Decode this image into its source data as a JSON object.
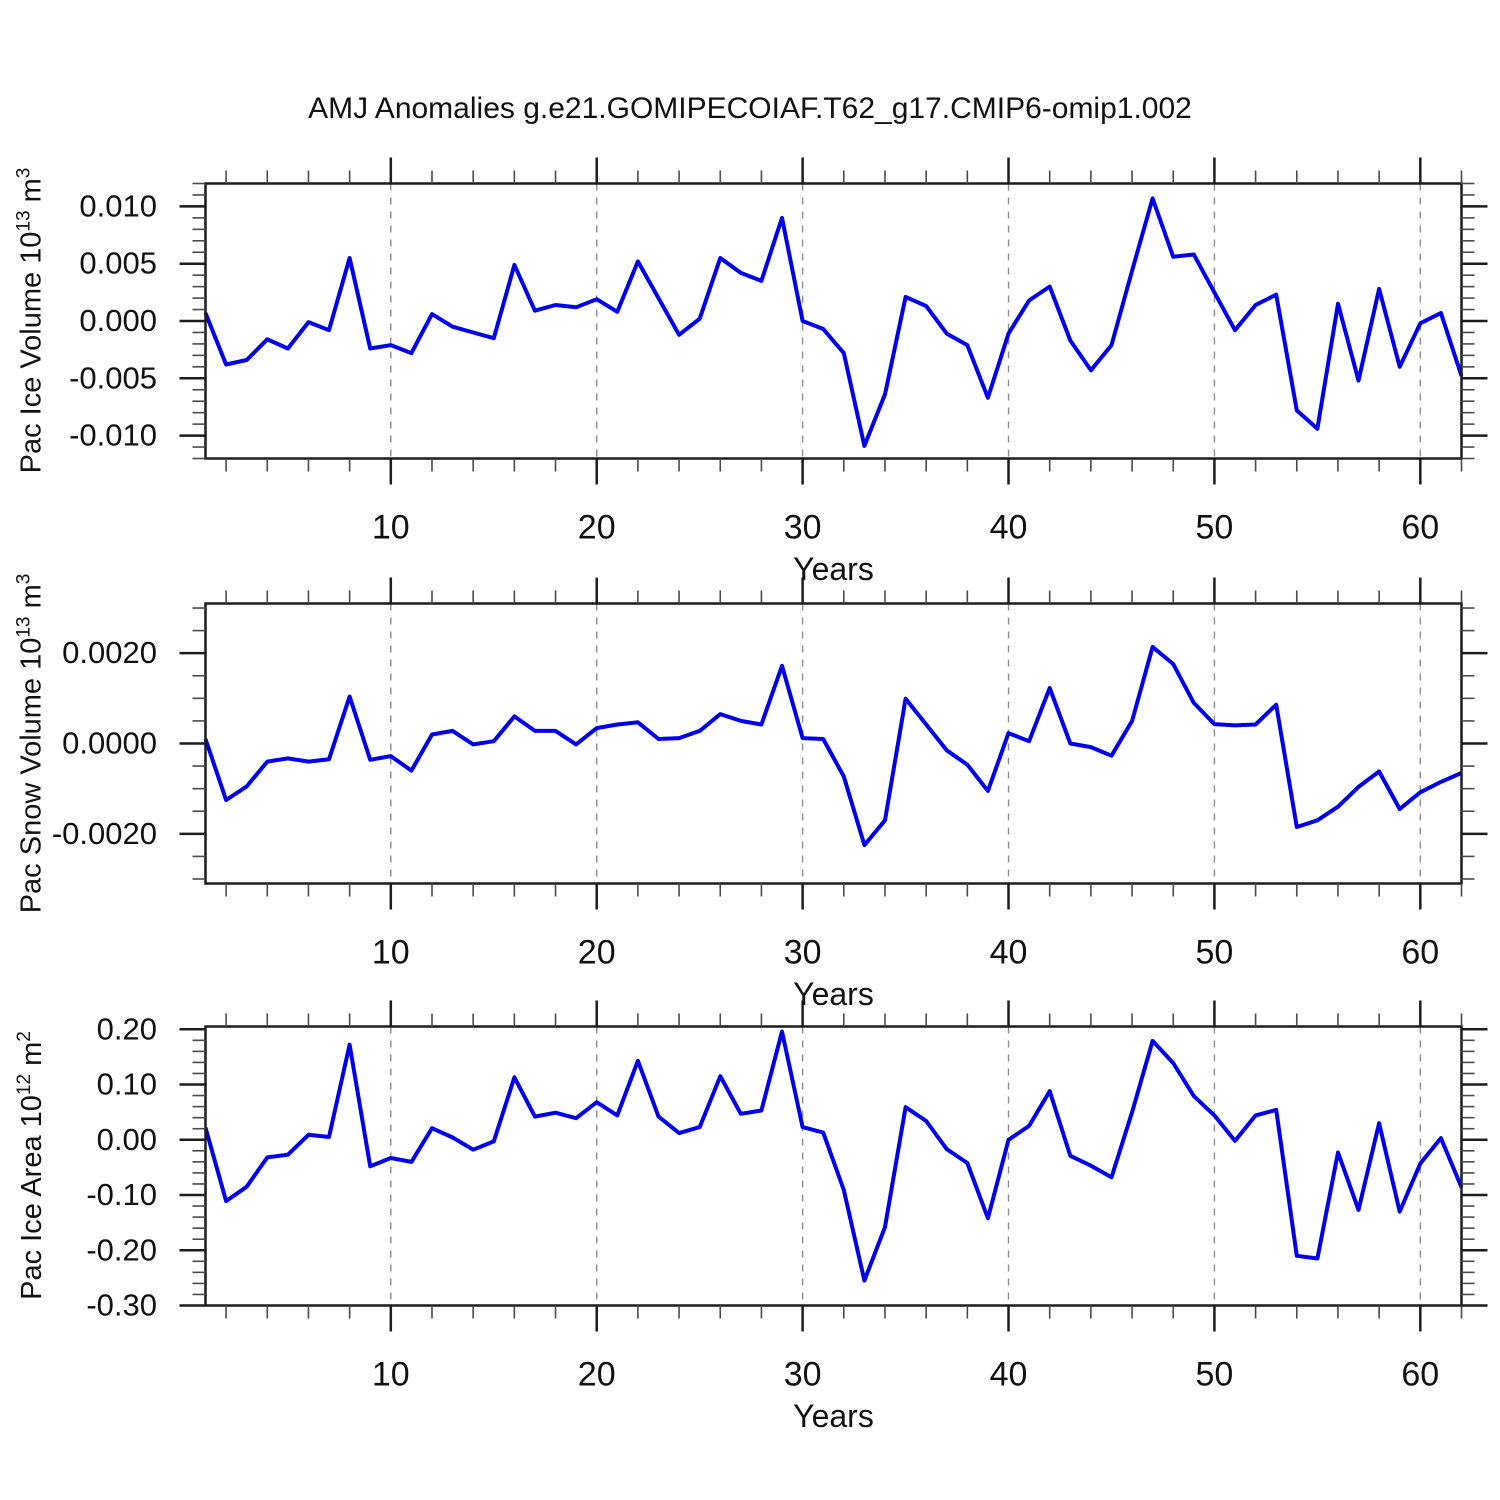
{
  "title": "AMJ Anomalies g.e21.GOMIPECOIAF.T62_g17.CMIP6-omip1.002",
  "colors": {
    "line": "#0000ee",
    "grid": "#8c8c8c",
    "axis": "#1c1c1c",
    "minor_tick": "#4a4a4a",
    "background": "#ffffff"
  },
  "chart_data": [
    {
      "id": "pac-ice-volume",
      "type": "line",
      "xlabel": "Years",
      "ylabel_text": "Pac Ice Volume 10^13 m^3",
      "ylabel_parts": [
        {
          "text": "Pac Ice Volume 10"
        },
        {
          "sup": "13"
        },
        {
          "text": " m"
        },
        {
          "sup": "3"
        }
      ],
      "xlim": [
        1,
        62
      ],
      "ylim": [
        -0.012,
        0.012
      ],
      "x_start": 1,
      "x_step": 1,
      "xticks_major": [
        10,
        20,
        30,
        40,
        50,
        60
      ],
      "xtick_labels": [
        "10",
        "20",
        "30",
        "40",
        "50",
        "60"
      ],
      "xtick_minor_step": 2,
      "grid_x": [
        10,
        20,
        30,
        40,
        50,
        60
      ],
      "yticks_major": [
        0.01,
        0.005,
        0.0,
        -0.005,
        -0.01
      ],
      "ytick_labels": [
        "0.010",
        "0.005",
        "0.000",
        "-0.005",
        "-0.010"
      ],
      "ytick_minor_step": 0.001,
      "values": [
        0.0007,
        -0.0038,
        -0.0034,
        -0.0016,
        -0.0024,
        -0.0001,
        -0.0008,
        0.0055,
        -0.0024,
        -0.0021,
        -0.0028,
        0.0006,
        -0.0005,
        -0.001,
        -0.0015,
        0.0049,
        0.0009,
        0.0014,
        0.0012,
        0.0019,
        0.0008,
        0.0052,
        0.002,
        -0.0012,
        0.0002,
        0.0055,
        0.0042,
        0.0035,
        0.009,
        0.0,
        -0.0007,
        -0.0028,
        -0.0109,
        -0.0064,
        0.0021,
        0.0013,
        -0.0011,
        -0.0021,
        -0.0067,
        -0.0011,
        0.0018,
        0.003,
        -0.0017,
        -0.0043,
        -0.0021,
        0.0044,
        0.0107,
        0.0056,
        0.0058,
        0.0025,
        -0.0008,
        0.0014,
        0.0023,
        -0.0078,
        -0.0094,
        0.0015,
        -0.0052,
        0.0028,
        -0.004,
        -0.0002,
        0.0007,
        -0.0048
      ]
    },
    {
      "id": "pac-snow-volume",
      "type": "line",
      "xlabel": "Years",
      "ylabel_text": "Pac Snow Volume 10^13 m^3",
      "ylabel_parts": [
        {
          "text": "Pac Snow Volume 10"
        },
        {
          "sup": "13"
        },
        {
          "text": " m"
        },
        {
          "sup": "3"
        }
      ],
      "xlim": [
        1,
        62
      ],
      "ylim": [
        -0.0031,
        0.0031
      ],
      "x_start": 1,
      "x_step": 1,
      "xticks_major": [
        10,
        20,
        30,
        40,
        50,
        60
      ],
      "xtick_labels": [
        "10",
        "20",
        "30",
        "40",
        "50",
        "60"
      ],
      "xtick_minor_step": 2,
      "grid_x": [
        10,
        20,
        30,
        40,
        50,
        60
      ],
      "yticks_major": [
        0.002,
        0.0,
        -0.002
      ],
      "ytick_labels": [
        "0.0020",
        "0.0000",
        "-0.0020"
      ],
      "ytick_minor_step": 0.0005,
      "values": [
        0.0001,
        -0.00125,
        -0.00095,
        -0.0004,
        -0.00033,
        -0.0004,
        -0.00035,
        0.00104,
        -0.00036,
        -0.00028,
        -0.0006,
        0.0002,
        0.00028,
        -2e-05,
        5e-05,
        0.0006,
        0.00028,
        0.00028,
        -2e-05,
        0.00034,
        0.00042,
        0.00047,
        0.0001,
        0.00012,
        0.00028,
        0.00065,
        0.0005,
        0.00042,
        0.00172,
        0.00012,
        0.0001,
        -0.00073,
        -0.00225,
        -0.0017,
        0.00099,
        0.00042,
        -0.00015,
        -0.00047,
        -0.00105,
        0.00023,
        5e-05,
        0.00123,
        0.0,
        -8e-05,
        -0.00027,
        0.0005,
        0.00214,
        0.00176,
        0.0009,
        0.00043,
        0.0004,
        0.00042,
        0.00086,
        -0.00185,
        -0.0017,
        -0.0014,
        -0.00096,
        -0.00062,
        -0.00145,
        -0.00108,
        -0.00085,
        -0.00065
      ]
    },
    {
      "id": "pac-ice-area",
      "type": "line",
      "xlabel": "Years",
      "ylabel_text": "Pac Ice Area 10^12 m^2",
      "ylabel_parts": [
        {
          "text": "Pac Ice Area 10"
        },
        {
          "sup": "12"
        },
        {
          "text": " m"
        },
        {
          "sup": "2"
        }
      ],
      "xlim": [
        1,
        62
      ],
      "ylim": [
        -0.3,
        0.205
      ],
      "x_start": 1,
      "x_step": 1,
      "xticks_major": [
        10,
        20,
        30,
        40,
        50,
        60
      ],
      "xtick_labels": [
        "10",
        "20",
        "30",
        "40",
        "50",
        "60"
      ],
      "xtick_minor_step": 2,
      "grid_x": [
        10,
        20,
        30,
        40,
        50,
        60
      ],
      "yticks_major": [
        0.2,
        0.1,
        0.0,
        -0.1,
        -0.2,
        -0.3
      ],
      "ytick_labels": [
        "0.20",
        "0.10",
        "0.00",
        "-0.10",
        "-0.20",
        "-0.30"
      ],
      "ytick_minor_step": 0.02,
      "values": [
        0.022,
        -0.111,
        -0.085,
        -0.032,
        -0.027,
        0.009,
        0.005,
        0.172,
        -0.048,
        -0.033,
        -0.04,
        0.021,
        0.004,
        -0.018,
        -0.003,
        0.113,
        0.042,
        0.049,
        0.039,
        0.068,
        0.044,
        0.143,
        0.042,
        0.012,
        0.023,
        0.115,
        0.047,
        0.053,
        0.196,
        0.023,
        0.013,
        -0.091,
        -0.255,
        -0.158,
        0.059,
        0.034,
        -0.017,
        -0.042,
        -0.142,
        0.0,
        0.025,
        0.088,
        -0.029,
        -0.047,
        -0.068,
        0.05,
        0.179,
        0.139,
        0.079,
        0.044,
        -0.002,
        0.044,
        0.054,
        -0.21,
        -0.215,
        -0.023,
        -0.127,
        0.03,
        -0.13,
        -0.043,
        0.003,
        -0.086
      ]
    }
  ]
}
